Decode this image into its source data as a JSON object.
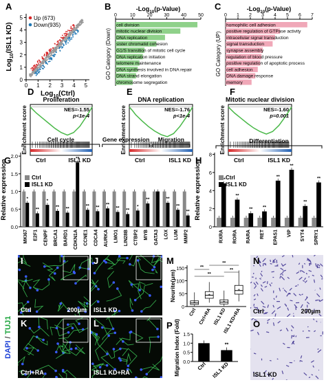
{
  "panel_letters": {
    "A": "A",
    "B": "B",
    "C": "C",
    "D": "D",
    "E": "E",
    "F": "F",
    "G": "G",
    "H": "H",
    "I": "I",
    "J": "J",
    "K": "K",
    "L": "L",
    "M": "M",
    "N": "N",
    "O": "O",
    "P": "P"
  },
  "chart_data": [
    {
      "id": "A",
      "type": "scatter",
      "xlabel": "Log10(Ctrl)",
      "ylabel": "Log10(ISL1 KD)",
      "xlabel_main": "Log",
      "xlabel_sub": "10",
      "xlabel_rest": "(Ctrl)",
      "ylabel_main": "Log",
      "ylabel_sub": "10",
      "ylabel_rest": "(ISL1 KD)",
      "xticks": [
        "0",
        "1",
        "2",
        "3",
        "4",
        "5"
      ],
      "yticks": [
        "0",
        "1",
        "2",
        "3",
        "4",
        "5"
      ],
      "xlim": [
        0,
        5.3
      ],
      "ylim": [
        0,
        5.3
      ],
      "legend": [
        {
          "label": "Up (673)",
          "color": "#d62728"
        },
        {
          "label": "Down(935)",
          "color": "#1f77b4"
        }
      ]
    },
    {
      "id": "B",
      "type": "bar",
      "orientation": "horizontal",
      "title_main": "-Log",
      "title_sub": "10",
      "title_rest": "(p-Value)",
      "ylabel": "GO Category (Down)",
      "xticks": [
        "0",
        "10",
        "20",
        "30",
        "40",
        "50"
      ],
      "xlim": [
        0,
        50
      ],
      "color": "#8fd18a",
      "categories": [
        "cell division",
        "mitotic nuclear division",
        "DNA replication",
        "sister chromatid cohesion",
        "G1/S transition of mitotic cell cycle",
        "DNA replication initiation",
        "telomere maintenance",
        "DNA synthesis involved in DNA repair",
        "DNA strand elongation",
        "chromosome segregation"
      ],
      "values": [
        48,
        38,
        29,
        24,
        17,
        16,
        14,
        13,
        12,
        10
      ]
    },
    {
      "id": "C",
      "type": "bar",
      "orientation": "horizontal",
      "title_main": "-Log",
      "title_sub": "10",
      "title_rest": "(p-Value)",
      "ylabel": "GO Category (UP)",
      "xticks": [
        "0",
        "1",
        "2",
        "3",
        "4",
        "5",
        "6",
        "7"
      ],
      "xlim": [
        0,
        7
      ],
      "color": "#f0a8b8",
      "categories": [
        "homophilic cell adhesion",
        "positive regulation of GTPase activity",
        "intracellular signal transduction",
        "signal transduction",
        "synapse assembly",
        "regulation of blood pressure",
        "positive regulation of apoptotic process",
        "cell adhesion",
        "DNA damage response",
        "memory"
      ],
      "values": [
        6.6,
        4.4,
        4.0,
        3.8,
        3.0,
        2.9,
        2.8,
        2.6,
        2.4,
        2.1
      ]
    },
    {
      "id": "D",
      "type": "line",
      "title": "Proliferation",
      "ylabel": "Enrichment score",
      "nes": "NES=-1.55",
      "p": "p<1e-4",
      "xlabels": [
        "Ctrl",
        "ISL1 KD"
      ],
      "yticks": [
        "0",
        "-0.2",
        "-0.4",
        "-0.6"
      ],
      "ylim": [
        -0.65,
        0.05
      ],
      "x": [
        0,
        0.05,
        0.1,
        0.2,
        0.3,
        0.4,
        0.5,
        0.6,
        0.7,
        0.8,
        0.9,
        1.0
      ],
      "y": [
        0,
        -0.06,
        -0.12,
        -0.22,
        -0.32,
        -0.42,
        -0.5,
        -0.55,
        -0.5,
        -0.38,
        -0.2,
        0
      ]
    },
    {
      "id": "E",
      "type": "line",
      "title": "DNA replication",
      "ylabel": "Enrichment score",
      "nes": "NES=-1.76",
      "p": "p<1e-4",
      "xlabels": [
        "Ctrl",
        "ISL1 KD"
      ],
      "yticks": [
        "0",
        "-0.2",
        "-0.4",
        "-0.6"
      ],
      "ylim": [
        -0.65,
        0.05
      ],
      "x": [
        0,
        0.05,
        0.1,
        0.2,
        0.3,
        0.4,
        0.5,
        0.6,
        0.7,
        0.8,
        0.9,
        1.0
      ],
      "y": [
        0,
        -0.07,
        -0.15,
        -0.27,
        -0.38,
        -0.47,
        -0.54,
        -0.58,
        -0.52,
        -0.38,
        -0.2,
        0
      ]
    },
    {
      "id": "F",
      "type": "line",
      "title": "Mitotic nuclear division",
      "ylabel": "Enrichment score",
      "nes": "NES=-1.60",
      "p": "p=0.001",
      "xlabels": [
        "Ctrl",
        "ISL1 KD"
      ],
      "yticks": [
        "0",
        "-0.2",
        "-0.4",
        "-0.6"
      ],
      "ylim": [
        -0.65,
        0.05
      ],
      "x": [
        0,
        0.05,
        0.1,
        0.2,
        0.3,
        0.4,
        0.5,
        0.6,
        0.7,
        0.8,
        0.9,
        1.0
      ],
      "y": [
        0,
        -0.06,
        -0.12,
        -0.22,
        -0.32,
        -0.41,
        -0.48,
        -0.53,
        -0.48,
        -0.36,
        -0.19,
        0
      ]
    },
    {
      "id": "G",
      "type": "bar",
      "ylabel": "Relative expression",
      "groups": [
        "Cell cycle",
        "Gene expression",
        "Migration"
      ],
      "yticks": [
        "0.0",
        "0.5",
        "1.0",
        "1.5",
        "2.0"
      ],
      "ylim": [
        0,
        2.1
      ],
      "legend": [
        {
          "label": "Ctrl",
          "color": "#888888"
        },
        {
          "label": "ISL1 KD",
          "color": "#000000"
        }
      ],
      "categories": [
        "MKI67",
        "E2F1",
        "CENPF",
        "BRCA1",
        "BARD1",
        "CDKN1A",
        "CCNE1",
        "CDCA4",
        "AURKA",
        "LMO1",
        "LIN28B",
        "CTBP2",
        "MYB",
        "GATA3",
        "LOX",
        "LUM",
        "MMP2"
      ],
      "series": [
        {
          "name": "Ctrl",
          "values": [
            1,
            1,
            1,
            1,
            1,
            1,
            1,
            1,
            1,
            1,
            1,
            1,
            1,
            1,
            1,
            1,
            1
          ]
        },
        {
          "name": "ISL1 KD",
          "values": [
            0.68,
            0.38,
            0.62,
            0.45,
            0.4,
            1.82,
            0.48,
            0.44,
            0.52,
            0.42,
            0.36,
            0.46,
            0.66,
            1.0,
            0.68,
            0.48,
            0.32
          ]
        }
      ],
      "sig": [
        "*",
        "**",
        "*",
        "**",
        "**",
        "**",
        "**",
        "**",
        "**",
        "**",
        "**",
        "*",
        "**",
        "",
        "**",
        "**",
        "**"
      ]
    },
    {
      "id": "H",
      "type": "bar",
      "ylabel": "Relative expression",
      "title": "Differentiation",
      "yticks": [
        "0",
        "2",
        "4",
        "6",
        "8"
      ],
      "ylim": [
        0,
        8.2
      ],
      "legend": [
        {
          "label": "Ctrl",
          "color": "#888888"
        },
        {
          "label": "ISL1 KD",
          "color": "#000000"
        }
      ],
      "categories": [
        "RXRA",
        "RORA",
        "RARA",
        "RET",
        "EPAS1",
        "VIP",
        "SYT4",
        "SPRY1"
      ],
      "series": [
        {
          "name": "Ctrl",
          "values": [
            1,
            1,
            1,
            1,
            1,
            1,
            1,
            1
          ]
        },
        {
          "name": "ISL1 KD",
          "values": [
            4.8,
            3.0,
            1.5,
            1.7,
            5.1,
            6.3,
            2.3,
            4.9
          ]
        }
      ],
      "sig": [
        "**",
        "**",
        "**",
        "**",
        "**",
        "**",
        "**",
        "**"
      ]
    },
    {
      "id": "M",
      "type": "box",
      "ylabel": "Neurite(μm)",
      "yticks": [
        "0",
        "50",
        "100",
        "150"
      ],
      "ylim": [
        0,
        160
      ],
      "categories": [
        "Ctrl",
        "Ctrl+RA",
        "ISL1 KD",
        "ISL1 KD+RA"
      ],
      "boxes": [
        {
          "min": 2,
          "q1": 8,
          "median": 14,
          "q3": 22,
          "max": 55,
          "mean": 17
        },
        {
          "min": 15,
          "q1": 32,
          "median": 44,
          "q3": 58,
          "max": 95,
          "mean": 46
        },
        {
          "min": 2,
          "q1": 10,
          "median": 17,
          "q3": 26,
          "max": 62,
          "mean": 20
        },
        {
          "min": 20,
          "q1": 48,
          "median": 62,
          "q3": 82,
          "max": 140,
          "mean": 66
        }
      ],
      "sig": [
        "**",
        "**",
        "**",
        "**"
      ]
    },
    {
      "id": "P",
      "type": "bar",
      "ylabel": "Migration Index (Fold)",
      "yticks": [
        "0.0",
        "0.5",
        "1.0",
        "1.5"
      ],
      "ylim": [
        0,
        1.5
      ],
      "categories": [
        "Ctrl",
        "ISL1 KD"
      ],
      "values": [
        1.0,
        0.62
      ],
      "colors": [
        "#000000",
        "#000000"
      ],
      "sig": [
        "",
        "**"
      ]
    }
  ],
  "micro": {
    "I": {
      "label": "Ctrl",
      "scale": "200μm"
    },
    "J": {
      "label": "ISL1 KD"
    },
    "K": {
      "label": "Ctrl+RA"
    },
    "L": {
      "label": "ISL1 KD+RA"
    },
    "N": {
      "label": "Ctrl",
      "scale": "200μm"
    },
    "O": {
      "label": "ISL1 KD"
    },
    "stain_dapi": "DAPI",
    "stain_sep": " / ",
    "stain_tuj1": "TUJ1"
  }
}
